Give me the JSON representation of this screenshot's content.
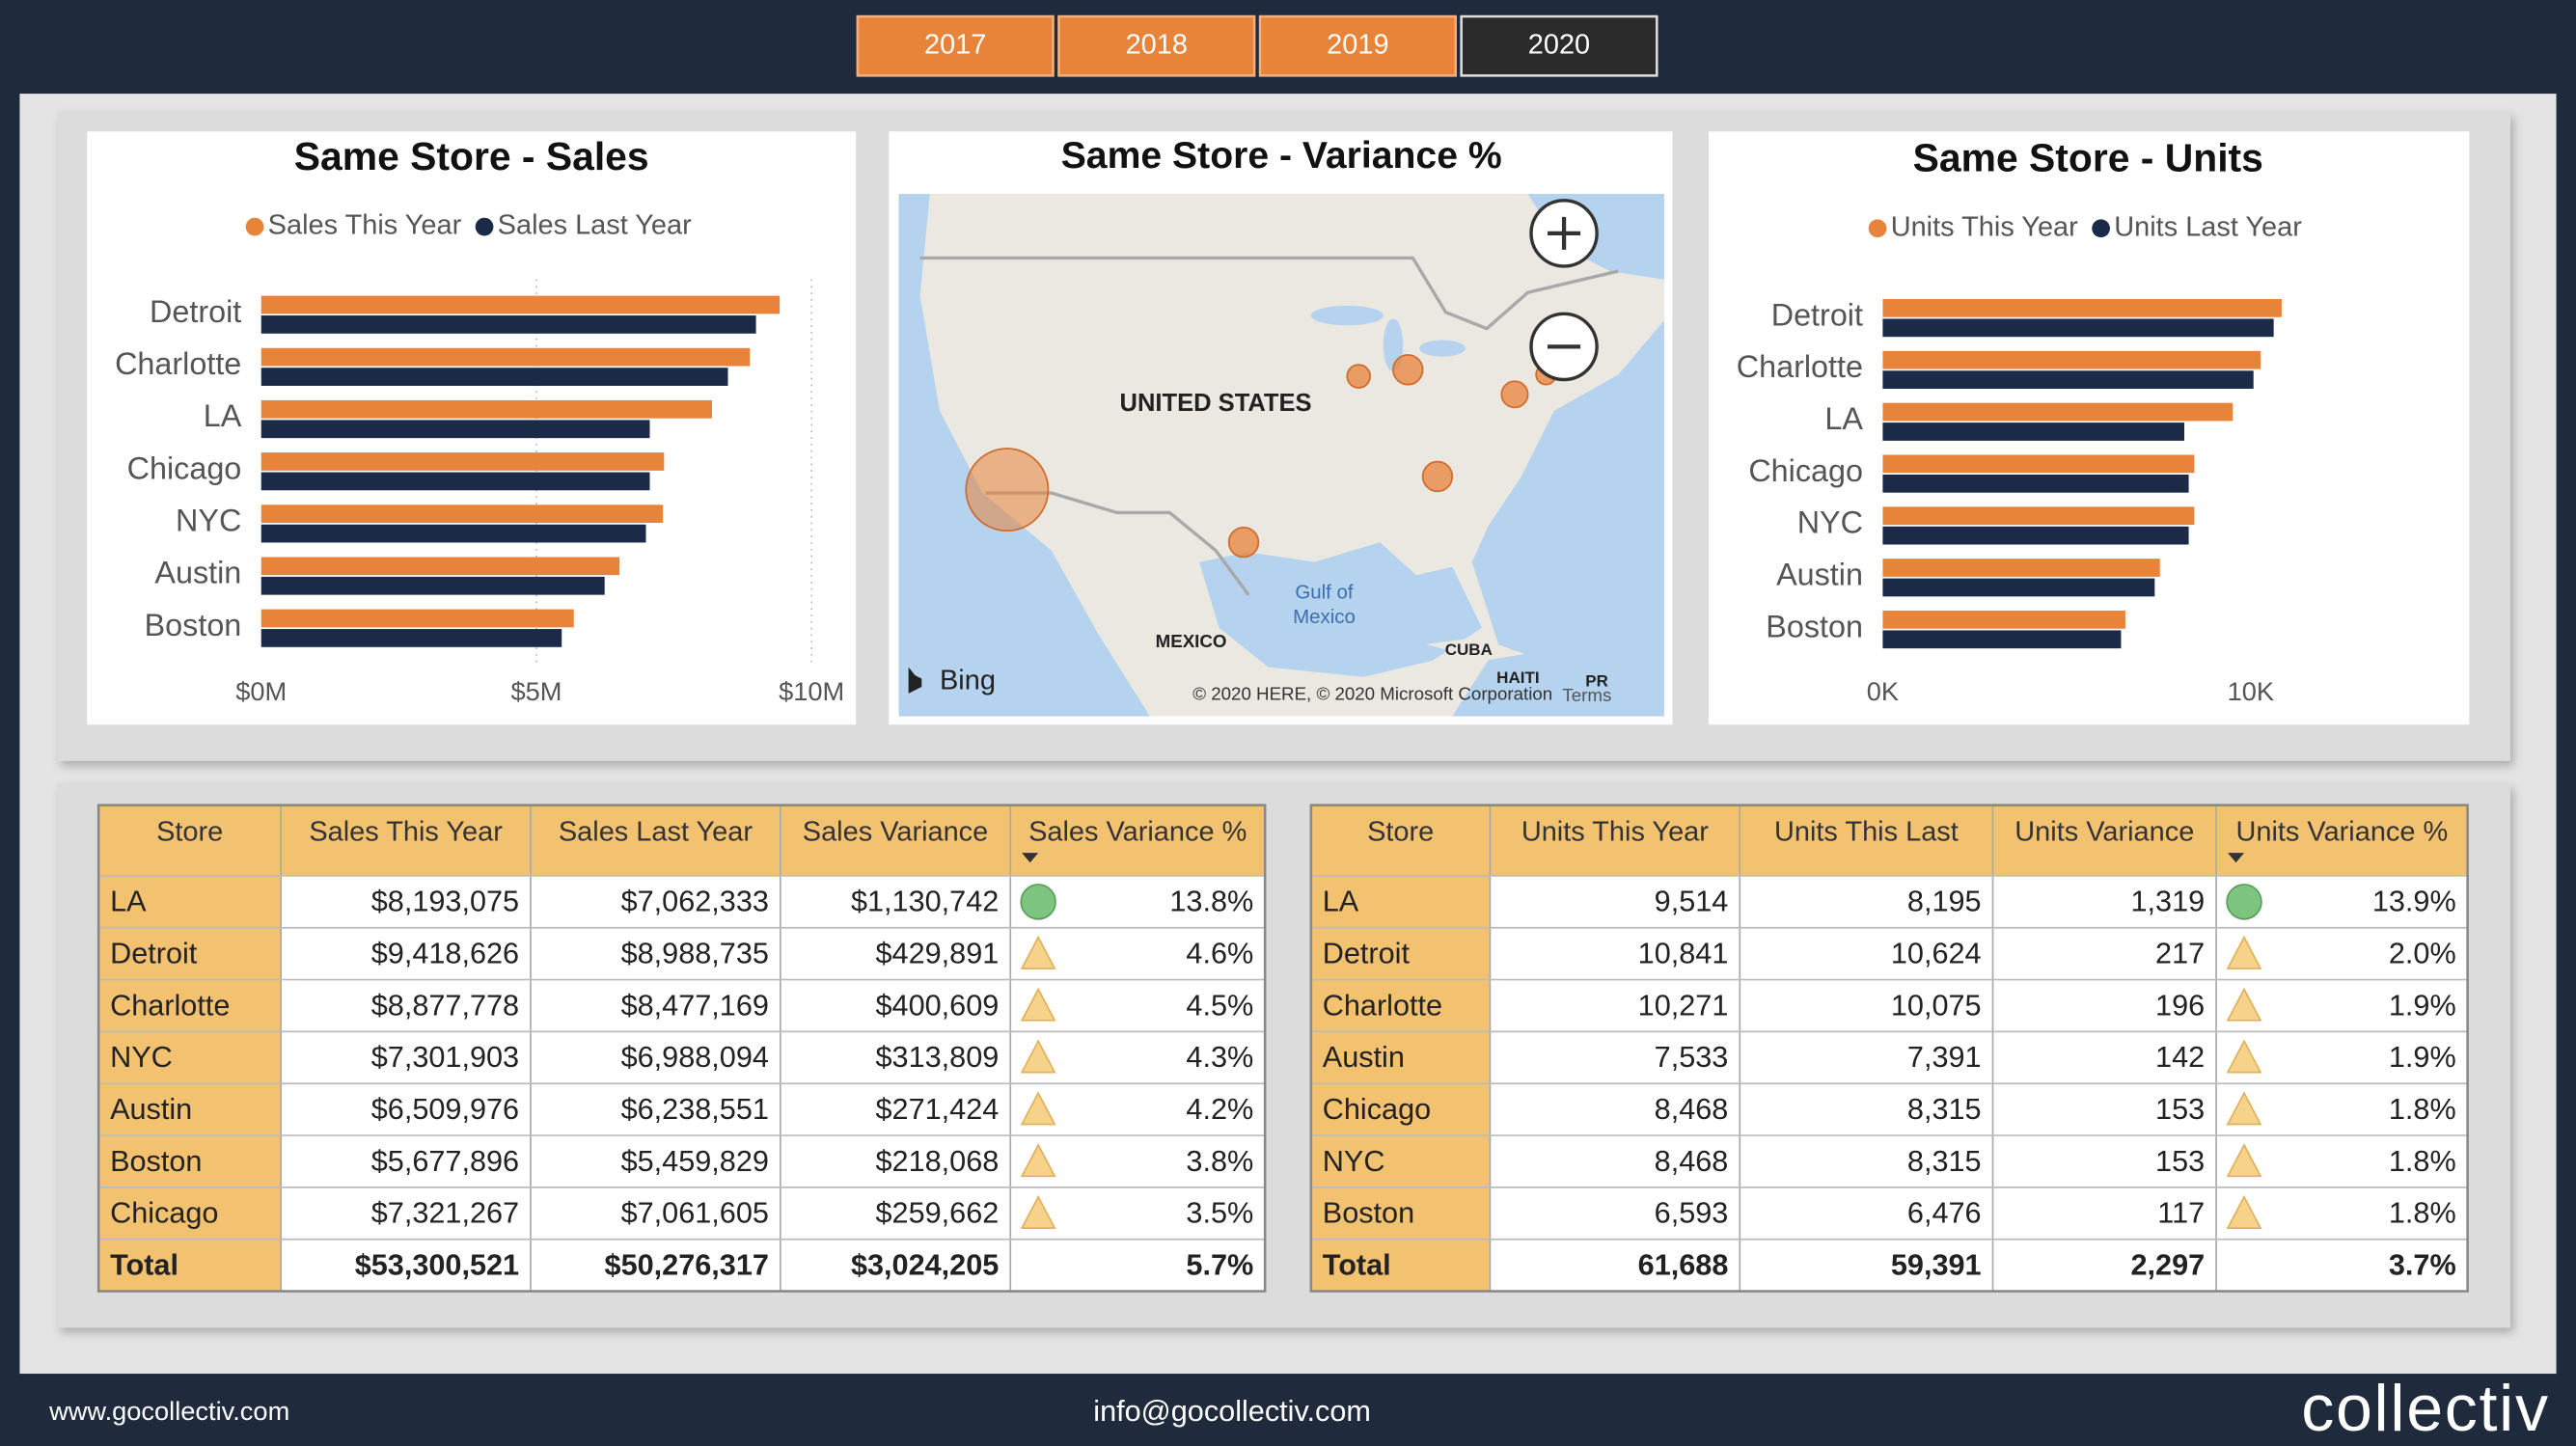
{
  "year_buttons": {
    "items": [
      "2017",
      "2018",
      "2019",
      "2020"
    ],
    "selected": "2020"
  },
  "chart_data": [
    {
      "type": "bar",
      "orientation": "horizontal",
      "title": "Same Store - Sales",
      "categories": [
        "Detroit",
        "Charlotte",
        "LA",
        "Chicago",
        "NYC",
        "Austin",
        "Boston"
      ],
      "series": [
        {
          "name": "Sales This Year",
          "color": "#e8833a",
          "values": [
            9.42,
            8.88,
            8.19,
            7.32,
            7.3,
            6.51,
            5.68
          ]
        },
        {
          "name": "Sales Last Year",
          "color": "#1b2a47",
          "values": [
            8.99,
            8.48,
            7.06,
            7.06,
            6.99,
            6.24,
            5.46
          ]
        }
      ],
      "xlim": [
        0,
        10
      ],
      "xticks": [
        {
          "value": 0,
          "label": "$0M"
        },
        {
          "value": 5,
          "label": "$5M"
        },
        {
          "value": 10,
          "label": "$10M"
        }
      ],
      "grid": true,
      "legend": "top"
    },
    {
      "type": "map",
      "title": "Same Store - Variance %",
      "labels": [
        "UNITED STATES",
        "MEXICO",
        "Gulf of",
        "Mexico",
        "CUBA",
        "HAITI",
        "PR"
      ],
      "provider": "Bing",
      "attribution": "© 2020 HERE, © 2020 Microsoft Corporation",
      "terms": "Terms",
      "bubble_color": "#e8833a"
    },
    {
      "type": "bar",
      "orientation": "horizontal",
      "title": "Same Store - Units",
      "categories": [
        "Detroit",
        "Charlotte",
        "LA",
        "Chicago",
        "NYC",
        "Austin",
        "Boston"
      ],
      "series": [
        {
          "name": "Units This Year",
          "color": "#e8833a",
          "values": [
            10.841,
            10.271,
            9.514,
            8.468,
            8.468,
            7.533,
            6.593
          ]
        },
        {
          "name": "Units Last Year",
          "color": "#1b2a47",
          "values": [
            10.624,
            10.075,
            8.195,
            8.315,
            8.315,
            7.391,
            6.476
          ]
        }
      ],
      "xlim": [
        0,
        15
      ],
      "xticks": [
        {
          "value": 0,
          "label": "0K"
        },
        {
          "value": 10,
          "label": "10K"
        }
      ],
      "grid": false,
      "legend": "top"
    }
  ],
  "tables": [
    {
      "columns": [
        "Store",
        "Sales This Year",
        "Sales Last Year",
        "Sales Variance",
        "Sales Variance %"
      ],
      "rows": [
        [
          "LA",
          "$8,193,075",
          "$7,062,333",
          "$1,130,742",
          "13.8%"
        ],
        [
          "Detroit",
          "$9,418,626",
          "$8,988,735",
          "$429,891",
          "4.6%"
        ],
        [
          "Charlotte",
          "$8,877,778",
          "$8,477,169",
          "$400,609",
          "4.5%"
        ],
        [
          "NYC",
          "$7,301,903",
          "$6,988,094",
          "$313,809",
          "4.3%"
        ],
        [
          "Austin",
          "$6,509,976",
          "$6,238,551",
          "$271,424",
          "4.2%"
        ],
        [
          "Boston",
          "$5,677,896",
          "$5,459,829",
          "$218,068",
          "3.8%"
        ],
        [
          "Chicago",
          "$7,321,267",
          "$7,061,605",
          "$259,662",
          "3.5%"
        ]
      ],
      "total": [
        "Total",
        "$53,300,521",
        "$50,276,317",
        "$3,024,205",
        "5.7%"
      ]
    },
    {
      "columns": [
        "Store",
        "Units This Year",
        "Units This Last",
        "Units Variance",
        "Units Variance %"
      ],
      "rows": [
        [
          "LA",
          "9,514",
          "8,195",
          "1,319",
          "13.9%"
        ],
        [
          "Detroit",
          "10,841",
          "10,624",
          "217",
          "2.0%"
        ],
        [
          "Charlotte",
          "10,271",
          "10,075",
          "196",
          "1.9%"
        ],
        [
          "Austin",
          "7,533",
          "7,391",
          "142",
          "1.9%"
        ],
        [
          "Chicago",
          "8,468",
          "8,315",
          "153",
          "1.8%"
        ],
        [
          "NYC",
          "8,468",
          "8,315",
          "153",
          "1.8%"
        ],
        [
          "Boston",
          "6,593",
          "6,476",
          "117",
          "1.8%"
        ]
      ],
      "total": [
        "Total",
        "61,688",
        "59,391",
        "2,297",
        "3.7%"
      ]
    }
  ],
  "footer": {
    "website": "www.gocollectiv.com",
    "email": "info@gocollectiv.com",
    "logo": "collectiv"
  }
}
